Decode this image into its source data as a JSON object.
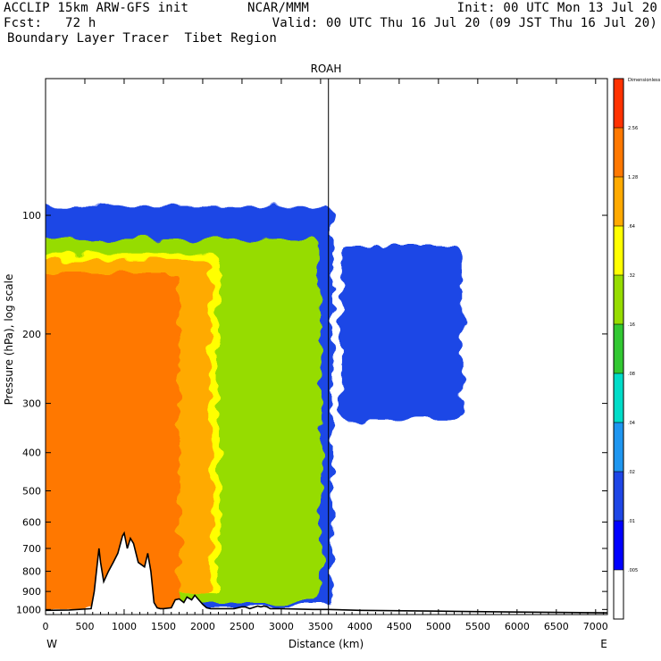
{
  "header": {
    "line1_left": "ACCLIP 15km ARW-GFS init",
    "line1_center": "NCAR/MMM",
    "line1_right": "Init: 00 UTC Mon 13 Jul 20",
    "line2_left": "Fcst:   72 h",
    "line2_right": "Valid: 00 UTC Thu 16 Jul 20 (09 JST Thu 16 Jul 20)",
    "line3_left": "Boundary Layer Tracer  Tibet Region"
  },
  "chart_data": {
    "type": "heatmap",
    "title": "ROAH",
    "xlabel": "Distance (km)",
    "ylabel": "Pressure (hPa), log scale",
    "x_ticks": [
      0,
      500,
      1000,
      1500,
      2000,
      2500,
      3000,
      3500,
      4000,
      4500,
      5000,
      5500,
      6000,
      6500,
      7000
    ],
    "y_ticks": [
      100,
      200,
      300,
      400,
      500,
      600,
      700,
      800,
      900,
      1000
    ],
    "xlim": [
      0,
      7150
    ],
    "ylim_pressure_hPa": [
      1030,
      45
    ],
    "x_end_labels": {
      "left": "W",
      "right": "E"
    },
    "station_marker_km": 3600,
    "colorbar": {
      "levels": [
        ".005",
        ".01",
        ".02",
        ".04",
        ".08",
        ".16",
        ".32",
        ".64",
        "1.28",
        "2.56"
      ],
      "top_label": "Dimensionless",
      "colors": [
        "#ffffff",
        "#0000ff",
        "#1e46e6",
        "#1e96f0",
        "#00dcc8",
        "#32c832",
        "#96dc00",
        "#ffff00",
        "#ffaa00",
        "#ff7800",
        "#ff3200"
      ]
    },
    "terrain_profile": {
      "distance_km": [
        0,
        300,
        580,
        620,
        680,
        700,
        740,
        800,
        860,
        920,
        980,
        1000,
        1040,
        1080,
        1120,
        1180,
        1260,
        1300,
        1340,
        1380,
        1420,
        1460,
        1500,
        1600,
        1650,
        1700,
        1760,
        1800,
        1860,
        1900,
        1950,
        2000,
        2050,
        2100,
        2200,
        2400,
        2500,
        2540,
        2600,
        2700,
        2740,
        2780,
        2820,
        2860,
        2900,
        3000,
        3400,
        3600,
        4000,
        5000,
        6000,
        7150
      ],
      "pressure_hPa": [
        1005,
        1003,
        995,
        900,
        700,
        760,
        850,
        800,
        760,
        720,
        650,
        640,
        700,
        660,
        680,
        760,
        780,
        720,
        800,
        960,
        990,
        995,
        995,
        990,
        945,
        940,
        960,
        930,
        945,
        920,
        945,
        970,
        990,
        995,
        995,
        995,
        985,
        985,
        995,
        980,
        985,
        980,
        985,
        995,
        995,
        995,
        1000,
        1000,
        1005,
        1010,
        1015,
        1020
      ]
    },
    "tracer_regions": [
      {
        "level": ".01",
        "x_km": [
          0,
          3650
        ],
        "p_hPa": [
          95,
          980
        ]
      },
      {
        "level": ".16",
        "x_km": [
          0,
          3500
        ],
        "p_hPa": [
          115,
          960
        ]
      },
      {
        "level": ".32",
        "x_km": [
          0,
          2200
        ],
        "p_hPa": [
          125,
          900
        ]
      },
      {
        "level": ".64",
        "x_km": [
          0,
          2100
        ],
        "p_hPa": [
          130,
          900
        ]
      },
      {
        "level": "1.28",
        "x_km": [
          0,
          1700
        ],
        "p_hPa": [
          140,
          1000
        ]
      },
      {
        "level": ".01",
        "x_km": [
          3750,
          5300
        ],
        "p_hPa": [
          120,
          330
        ]
      }
    ]
  }
}
